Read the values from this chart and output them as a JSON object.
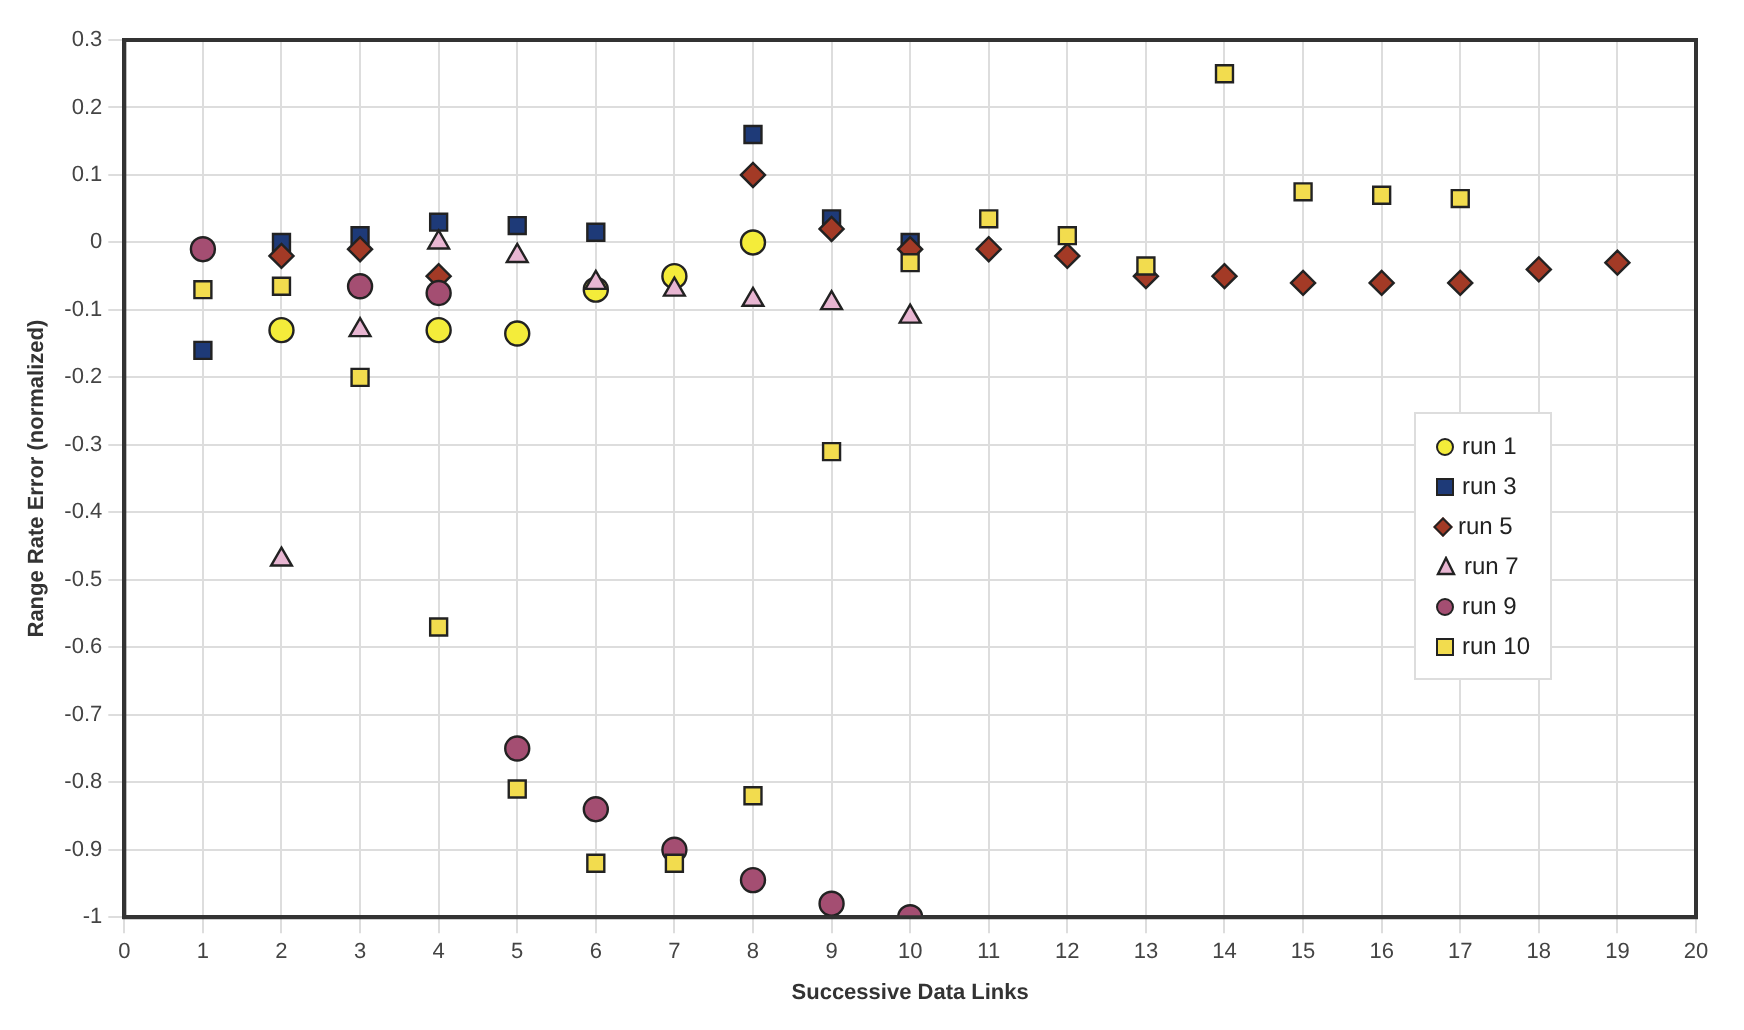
{
  "chart_data": {
    "type": "scatter",
    "xlabel": "Successive Data Links",
    "ylabel": "Range Rate Error (normalized)",
    "xlim": [
      0,
      20
    ],
    "xticks": [
      0,
      1,
      2,
      3,
      4,
      5,
      6,
      7,
      8,
      9,
      10,
      11,
      12,
      13,
      14,
      15,
      16,
      17,
      18,
      19,
      20
    ],
    "ylim": [
      -1,
      0.3
    ],
    "yticks": [
      -1,
      -0.9,
      -0.8,
      -0.7,
      -0.6,
      -0.5,
      -0.4,
      -0.3,
      -0.2,
      -0.1,
      0,
      0.1,
      0.2,
      0.3
    ],
    "grid": true,
    "legend": "right",
    "series": [
      {
        "name": "run 1",
        "color": "#f4ec3a",
        "marker": "circle",
        "x": [
          2,
          4,
          5,
          6,
          7,
          8
        ],
        "values": [
          -0.13,
          -0.13,
          -0.135,
          -0.07,
          -0.05,
          0.0
        ]
      },
      {
        "name": "run 3",
        "color": "#1e3a78",
        "marker": "square",
        "x": [
          1,
          2,
          3,
          4,
          5,
          6,
          8,
          9,
          10
        ],
        "values": [
          -0.16,
          0.0,
          0.01,
          0.03,
          0.025,
          0.015,
          0.16,
          0.035,
          0.0
        ]
      },
      {
        "name": "run 5",
        "color": "#a33a26",
        "marker": "diamond",
        "x": [
          2,
          3,
          4,
          8,
          9,
          10,
          11,
          12,
          13,
          14,
          15,
          16,
          17,
          18,
          19
        ],
        "values": [
          -0.02,
          -0.01,
          -0.05,
          0.1,
          0.02,
          -0.01,
          -0.01,
          -0.02,
          -0.05,
          -0.05,
          -0.06,
          -0.06,
          -0.06,
          -0.04,
          -0.03
        ]
      },
      {
        "name": "run 7",
        "color": "#e8b6d2",
        "marker": "triangle",
        "x": [
          2,
          3,
          4,
          5,
          6,
          7,
          8,
          9,
          10
        ],
        "values": [
          -0.47,
          -0.13,
          0.0,
          -0.02,
          -0.06,
          -0.07,
          -0.085,
          -0.09,
          -0.11
        ]
      },
      {
        "name": "run 9",
        "color": "#a44e72",
        "marker": "circle",
        "x": [
          1,
          3,
          4,
          5,
          6,
          7,
          8,
          9,
          10
        ],
        "values": [
          -0.01,
          -0.065,
          -0.075,
          -0.75,
          -0.84,
          -0.9,
          -0.945,
          -0.98,
          -1.0
        ]
      },
      {
        "name": "run 10",
        "color": "#f2dc4e",
        "marker": "square",
        "x": [
          1,
          2,
          3,
          4,
          5,
          6,
          7,
          8,
          9,
          10,
          11,
          12,
          13,
          14,
          15,
          16,
          17
        ],
        "values": [
          -0.07,
          -0.065,
          -0.2,
          -0.57,
          -0.81,
          -0.92,
          -0.92,
          -0.82,
          -0.31,
          -0.03,
          0.035,
          0.01,
          -0.035,
          0.25,
          0.075,
          0.07,
          0.065
        ]
      }
    ]
  }
}
